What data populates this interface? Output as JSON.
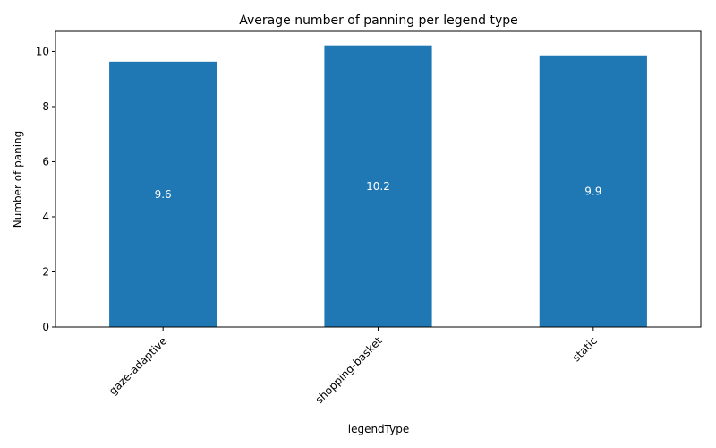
{
  "chart_data": {
    "type": "bar",
    "title": "Average number of panning per legend type",
    "xlabel": "legendType",
    "ylabel": "Number of paning",
    "categories": [
      "gaze-adaptive",
      "shopping-basket",
      "static"
    ],
    "values": [
      9.63,
      10.22,
      9.86
    ],
    "data_labels": [
      "9.6",
      "10.2",
      "9.9"
    ],
    "ylim": [
      0,
      10.73
    ],
    "yticks": [
      0,
      2,
      4,
      6,
      8,
      10
    ],
    "grid": false,
    "legend": "none",
    "bar_color": "#1f77b4",
    "x_tick_rotation": "45"
  }
}
